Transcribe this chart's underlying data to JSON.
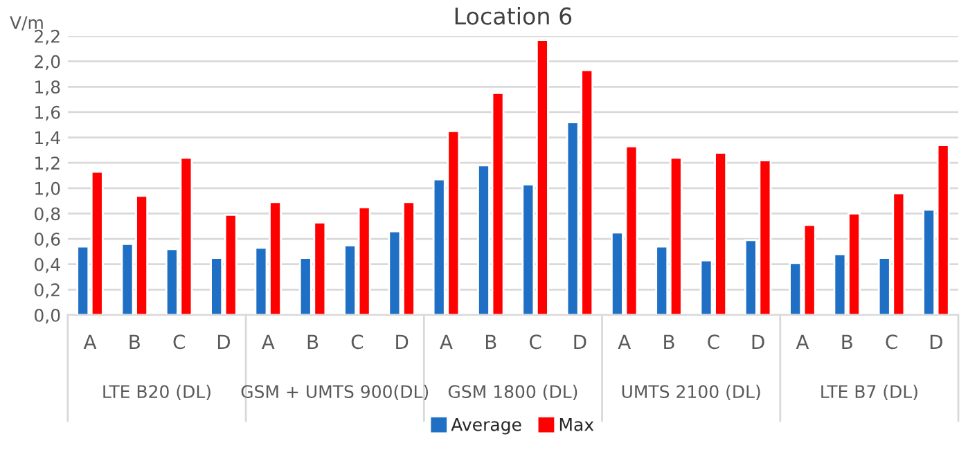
{
  "chart_data": {
    "type": "bar",
    "title": "Location 6",
    "ylabel": "V/m",
    "categories": [
      "A",
      "B",
      "C",
      "D",
      "A",
      "B",
      "C",
      "D",
      "A",
      "B",
      "C",
      "D",
      "A",
      "B",
      "C",
      "D",
      "A",
      "B",
      "C",
      "D"
    ],
    "series": [
      {
        "name": "Average",
        "color": "#1f6fc5",
        "values": [
          0.54,
          0.56,
          0.52,
          0.45,
          0.53,
          0.45,
          0.55,
          0.66,
          1.07,
          1.18,
          1.03,
          1.52,
          0.65,
          0.54,
          0.43,
          0.59,
          0.41,
          0.48,
          0.45,
          0.83
        ]
      },
      {
        "name": "Max",
        "color": "#ff0000",
        "values": [
          1.13,
          0.94,
          1.24,
          0.79,
          0.89,
          0.73,
          0.85,
          0.89,
          1.45,
          1.75,
          2.17,
          1.93,
          1.33,
          1.24,
          1.28,
          1.22,
          0.71,
          0.8,
          0.96,
          1.34
        ]
      }
    ],
    "annotations": [
      "LTE B20 (DL)",
      "GSM + UMTS 900(DL)",
      "GSM 1800 (DL)",
      "UMTS 2100 (DL)",
      "LTE B7 (DL)"
    ],
    "ylim": [
      0,
      2.2
    ],
    "yticks": [
      {
        "value": 0,
        "label": "0,0"
      },
      {
        "value": 0.2,
        "label": "0,2"
      },
      {
        "value": 0.4,
        "label": "0,4"
      },
      {
        "value": 0.6,
        "label": "0,6"
      },
      {
        "value": 0.8,
        "label": "0,8"
      },
      {
        "value": 1.0,
        "label": "1,0"
      },
      {
        "value": 1.2,
        "label": "1,2"
      },
      {
        "value": 1.4,
        "label": "1,4"
      },
      {
        "value": 1.6,
        "label": "1,6"
      },
      {
        "value": 1.8,
        "label": "1,8"
      },
      {
        "value": 2.0,
        "label": "2,0"
      },
      {
        "value": 2.2,
        "label": "2,2"
      }
    ],
    "grid": "y",
    "legend": "bottom"
  }
}
